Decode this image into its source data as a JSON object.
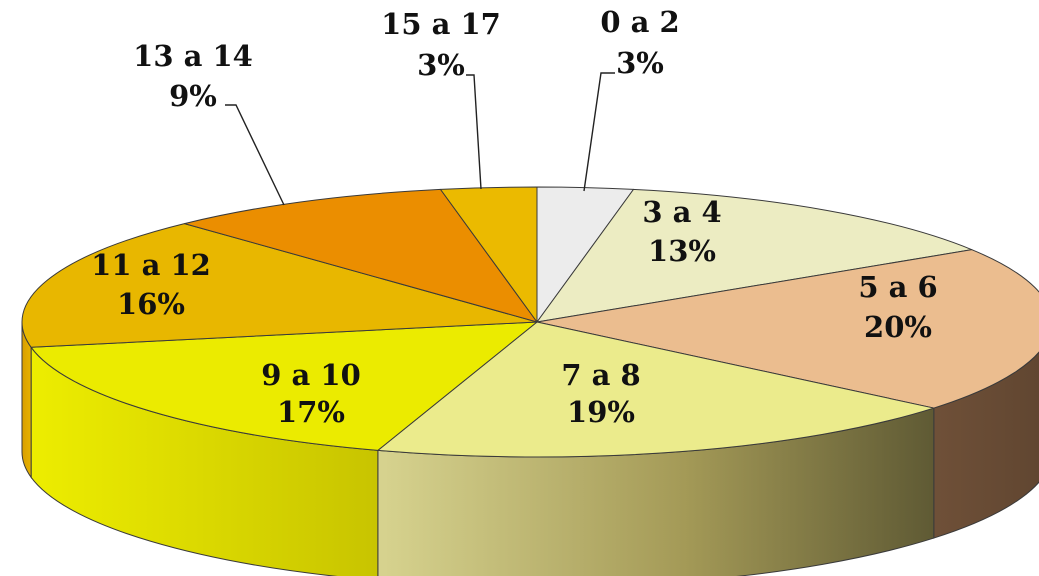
{
  "chart_data": {
    "type": "pie",
    "style": "3d",
    "title": "",
    "categories": [
      "0 a 2",
      "3 a 4",
      "5 a 6",
      "7 a 8",
      "9 a 10",
      "11 a 12",
      "13 a 14",
      "15 a 17"
    ],
    "values": [
      3,
      13,
      20,
      19,
      17,
      16,
      9,
      3
    ],
    "value_labels": [
      "3%",
      "13%",
      "20%",
      "19%",
      "17%",
      "16%",
      "9%",
      "3%"
    ],
    "colors": [
      "#ececec",
      "#ececc2",
      "#ebbd8f",
      "#ebeb8c",
      "#ebeb00",
      "#e8b700",
      "#eb8e00",
      "#ebba00"
    ],
    "legend": "none"
  }
}
